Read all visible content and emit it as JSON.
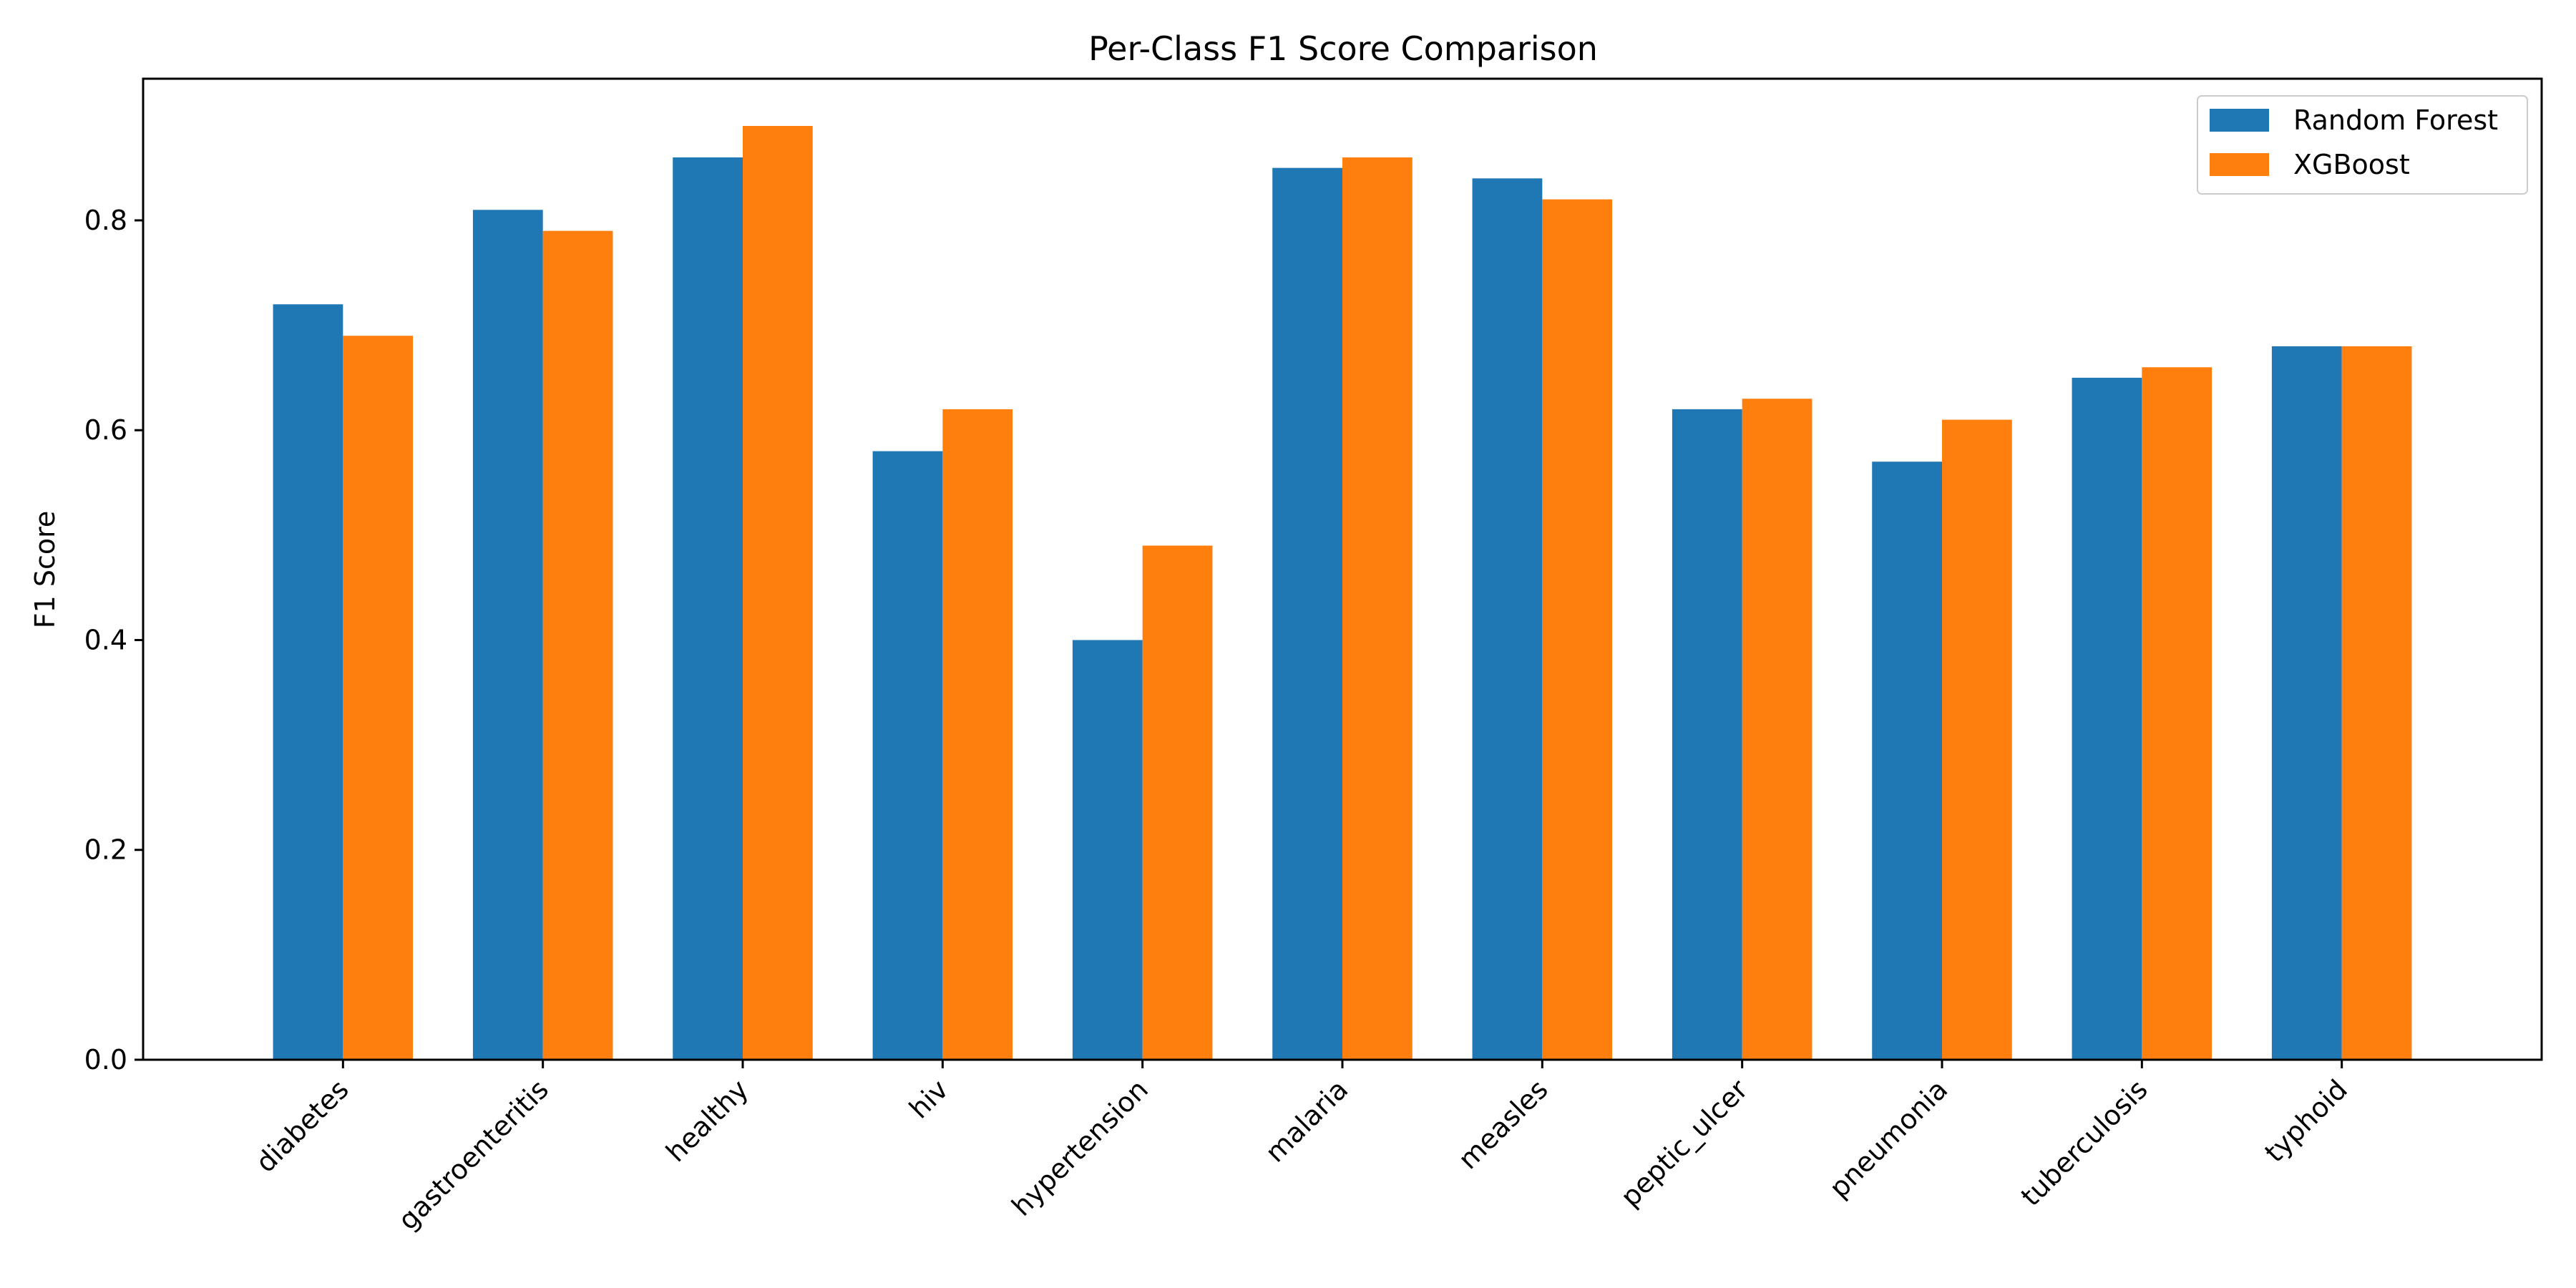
{
  "chart_data": {
    "type": "bar",
    "title": "Per-Class F1 Score Comparison",
    "xlabel": "",
    "ylabel": "F1 Score",
    "ylim": [
      0,
      0.935
    ],
    "yticks": [
      0.0,
      0.2,
      0.4,
      0.6,
      0.8
    ],
    "ytick_labels": [
      "0.0",
      "0.2",
      "0.4",
      "0.6",
      "0.8"
    ],
    "categories": [
      "diabetes",
      "gastroenteritis",
      "healthy",
      "hiv",
      "hypertension",
      "malaria",
      "measles",
      "peptic_ulcer",
      "pneumonia",
      "tuberculosis",
      "typhoid"
    ],
    "series": [
      {
        "name": "Random Forest",
        "color": "#1f77b4",
        "values": [
          0.72,
          0.81,
          0.86,
          0.58,
          0.4,
          0.85,
          0.84,
          0.62,
          0.57,
          0.65,
          0.68
        ]
      },
      {
        "name": "XGBoost",
        "color": "#ff7f0e",
        "values": [
          0.69,
          0.79,
          0.89,
          0.62,
          0.49,
          0.86,
          0.82,
          0.63,
          0.61,
          0.66,
          0.68
        ]
      }
    ],
    "grid": false,
    "legend_position": "top-right"
  }
}
